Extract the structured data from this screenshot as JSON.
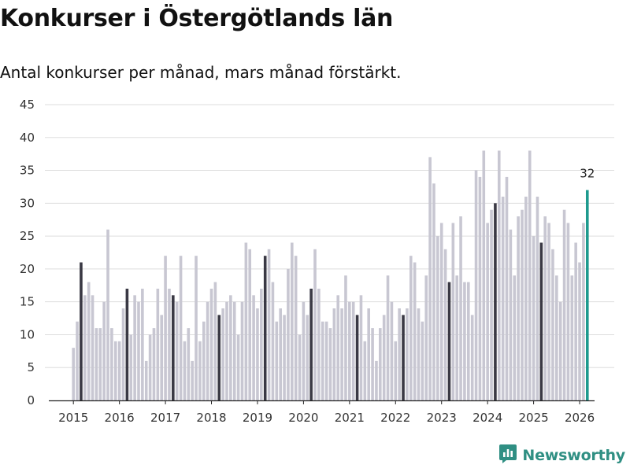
{
  "title": "Konkurser i Östergötlands län",
  "subtitle": "Antal konkurser per månad, mars månad förstärkt.",
  "brand": {
    "name": "Newsworthy",
    "icon": "newsworthy-logo-icon"
  },
  "colors": {
    "regular": "#c8c7d2",
    "highlight": "#3a3944",
    "latest": "#1e9a8e",
    "grid": "#dddddd",
    "axis": "#222222"
  },
  "chart_data": {
    "type": "bar",
    "title": "Konkurser i Östergötlands län",
    "subtitle": "Antal konkurser per månad, mars månad förstärkt.",
    "xlabel": "",
    "ylabel": "",
    "ylim": [
      0,
      45
    ],
    "yticks": [
      0,
      5,
      10,
      15,
      20,
      25,
      30,
      35,
      40,
      45
    ],
    "xticks": [
      "2015",
      "2016",
      "2017",
      "2018",
      "2019",
      "2020",
      "2021",
      "2022",
      "2023",
      "2024",
      "2025",
      "2026"
    ],
    "start": "2015-01",
    "highlight_month": 3,
    "values": [
      8,
      12,
      21,
      16,
      18,
      16,
      11,
      11,
      15,
      26,
      11,
      9,
      9,
      14,
      17,
      10,
      16,
      15,
      17,
      6,
      10,
      11,
      17,
      13,
      22,
      17,
      16,
      15,
      22,
      9,
      11,
      6,
      22,
      9,
      12,
      15,
      17,
      18,
      13,
      14,
      15,
      16,
      15,
      10,
      15,
      24,
      23,
      16,
      14,
      17,
      22,
      23,
      18,
      12,
      14,
      13,
      20,
      24,
      22,
      10,
      15,
      13,
      17,
      23,
      17,
      12,
      12,
      11,
      14,
      16,
      14,
      19,
      15,
      15,
      13,
      16,
      9,
      14,
      11,
      6,
      11,
      13,
      19,
      15,
      9,
      14,
      13,
      14,
      22,
      21,
      14,
      12,
      19,
      37,
      33,
      25,
      27,
      23,
      18,
      27,
      19,
      28,
      18,
      18,
      13,
      35,
      34,
      38,
      27,
      29,
      30,
      38,
      31,
      34,
      26,
      19,
      28,
      29,
      31,
      38,
      25,
      31,
      24,
      28,
      27,
      23,
      19,
      15,
      29,
      27,
      19,
      24,
      21,
      27,
      32
    ],
    "annotations": [
      {
        "index": 134,
        "label": "32"
      }
    ]
  }
}
